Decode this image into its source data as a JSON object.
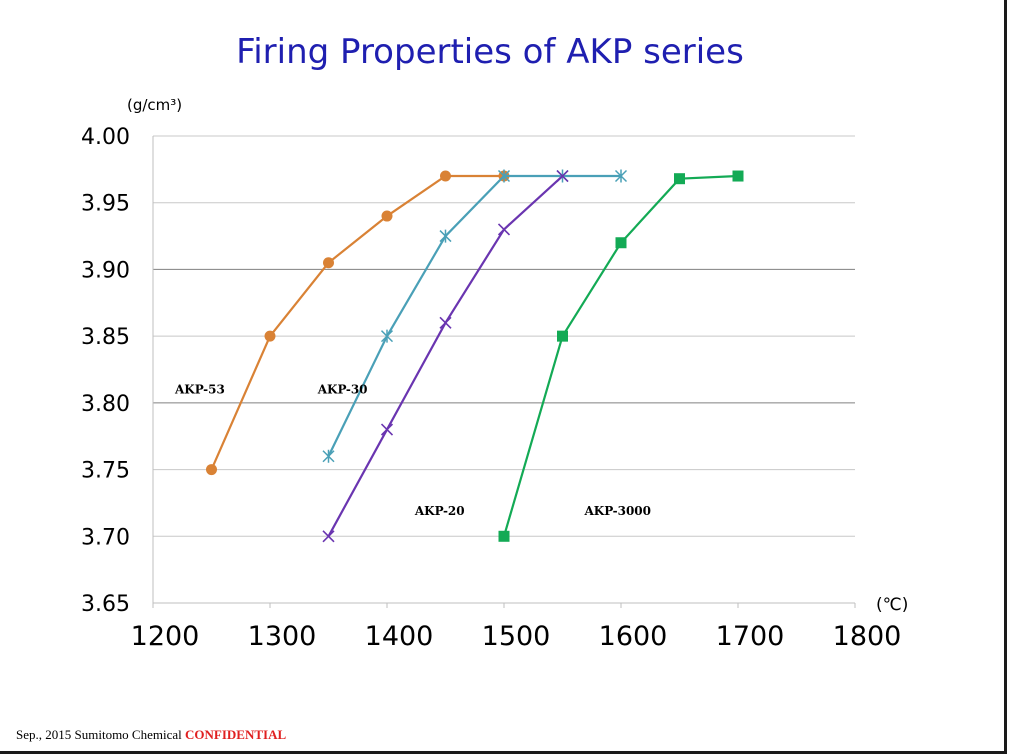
{
  "title": "Firing Properties of AKP series",
  "footer": {
    "text": "Sep., 2015 Sumitomo Chemical",
    "confidential": "CONFIDENTIAL"
  },
  "chart_data": {
    "type": "line",
    "title": "Firing Properties of AKP series",
    "xlabel": "(℃)",
    "ylabel": "(g/cm³)",
    "xlim": [
      1200,
      1800
    ],
    "ylim": [
      3.65,
      4.0
    ],
    "x_ticks": [
      "1200",
      "1300",
      "1400",
      "1500",
      "1600",
      "1700",
      "1800"
    ],
    "x_tick_values": [
      1200,
      1300,
      1400,
      1500,
      1600,
      1700,
      1800
    ],
    "y_ticks": [
      "3.65",
      "3.70",
      "3.75",
      "3.80",
      "3.85",
      "3.90",
      "3.95",
      "4.00"
    ],
    "y_tick_values": [
      3.65,
      3.7,
      3.75,
      3.8,
      3.85,
      3.9,
      3.95,
      4.0
    ],
    "grid": true,
    "series": [
      {
        "name": "AKP-53",
        "color": "#d98235",
        "marker": "circle",
        "x": [
          1250,
          1300,
          1350,
          1400,
          1450,
          1500
        ],
        "y": [
          3.75,
          3.85,
          3.905,
          3.94,
          3.97,
          3.97
        ],
        "label_at": [
          1200,
          3.81
        ]
      },
      {
        "name": "AKP-30",
        "color": "#4aa0b7",
        "marker": "asterisk",
        "x": [
          1350,
          1400,
          1450,
          1500,
          1550,
          1600
        ],
        "y": [
          3.76,
          3.85,
          3.925,
          3.97,
          3.97,
          3.97
        ],
        "label_at": [
          1322,
          3.81
        ]
      },
      {
        "name": "AKP-20",
        "color": "#6a35b0",
        "marker": "x",
        "x": [
          1350,
          1400,
          1450,
          1500,
          1550
        ],
        "y": [
          3.7,
          3.78,
          3.86,
          3.93,
          3.97
        ],
        "label_at": [
          1405,
          3.719
        ]
      },
      {
        "name": "AKP-3000",
        "color": "#13aa55",
        "marker": "square",
        "x": [
          1500,
          1550,
          1600,
          1650,
          1700
        ],
        "y": [
          3.7,
          3.85,
          3.92,
          3.968,
          3.97
        ],
        "label_at": [
          1550,
          3.719
        ]
      }
    ]
  }
}
